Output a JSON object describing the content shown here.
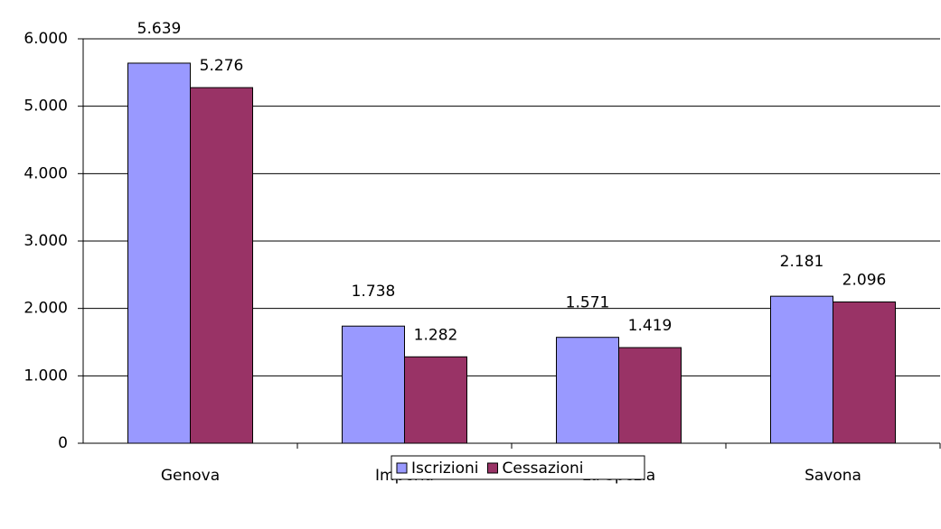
{
  "chart_data": {
    "type": "bar",
    "categories": [
      "Genova",
      "Imperia",
      "La Spezia",
      "Savona"
    ],
    "series": [
      {
        "name": "Iscrizioni",
        "color": "#9999ff",
        "values": [
          5639,
          1738,
          1571,
          2181
        ],
        "value_labels": [
          "5.639",
          "1.738",
          "1.571",
          "2.181"
        ]
      },
      {
        "name": "Cessazioni",
        "color": "#993366",
        "values": [
          5276,
          1282,
          1419,
          2096
        ],
        "value_labels": [
          "5.276",
          "1.282",
          "1.419",
          "2.096"
        ]
      }
    ],
    "ylim": [
      0,
      6000
    ],
    "yticks": [
      0,
      {
        "value": 1000,
        "label": "1.000"
      },
      {
        "value": 2000,
        "label": "2.000"
      },
      {
        "value": 3000,
        "label": "3.000"
      },
      {
        "value": 4000,
        "label": "4.000"
      },
      {
        "value": 5000,
        "label": "5.000"
      },
      {
        "value": 6000,
        "label": "6.000"
      }
    ],
    "grid": true,
    "legend": "bottom"
  }
}
